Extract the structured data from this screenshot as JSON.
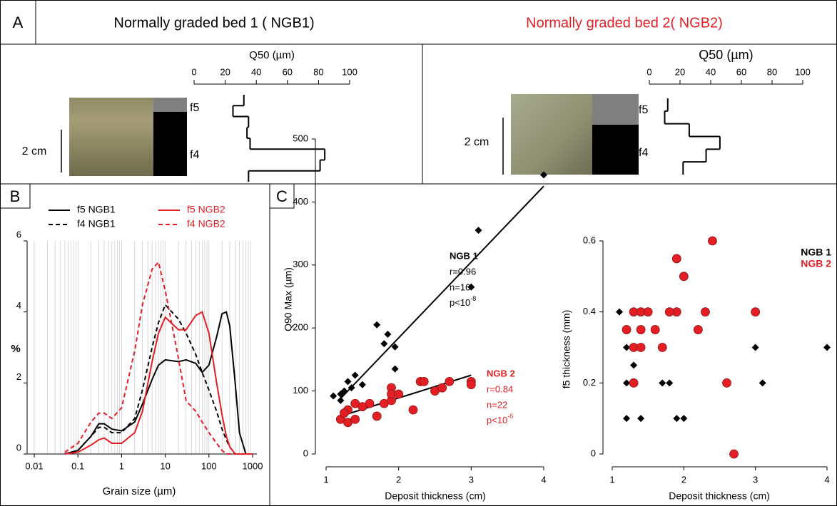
{
  "figure": {
    "panel_labels": [
      "A",
      "B",
      "C"
    ]
  },
  "chart_data": [
    {
      "type": "profile",
      "title": "Normally graded bed 1 ( NGB1)",
      "title_color": "#000000",
      "xlabel": "Q50 (µm)",
      "xlim": [
        0,
        100
      ],
      "xticks": [
        0,
        20,
        40,
        60,
        80,
        100
      ],
      "color": "#000000",
      "values": [
        32,
        25,
        35,
        34,
        36,
        84,
        81,
        35
      ],
      "layers": [
        "f5",
        "f4"
      ],
      "scale_label": "2 cm"
    },
    {
      "type": "profile",
      "title": "Normally graded bed 2( NGB2)",
      "title_color": "#e31e24",
      "xlabel": "Q50 (µm)",
      "xlim": [
        0,
        100
      ],
      "xticks": [
        0,
        20,
        40,
        60,
        80,
        100
      ],
      "color": "#000000",
      "values": [
        12,
        10,
        26,
        46,
        37,
        22
      ],
      "layers": [
        "f5",
        "f4"
      ],
      "scale_label": "2 cm"
    },
    {
      "type": "line",
      "xlabel": "Grain size (µm)",
      "ylabel": "%",
      "xscale": "log",
      "minor_grid": true,
      "xlim": [
        0.01,
        1000
      ],
      "xticks": [
        0.01,
        0.1,
        1,
        10,
        100,
        1000
      ],
      "ylim": [
        0,
        6
      ],
      "yticks": [
        0,
        2,
        4,
        6
      ],
      "x": [
        0.05,
        0.1,
        0.2,
        0.3,
        0.4,
        0.6,
        1,
        2,
        3,
        5,
        7,
        10,
        20,
        30,
        50,
        70,
        100,
        150,
        200,
        250,
        300,
        400,
        500,
        700,
        1000
      ],
      "series": [
        {
          "name": "f5 NGB1",
          "color": "#000000",
          "dashed": false,
          "values": [
            0,
            0.1,
            0.5,
            0.85,
            0.85,
            0.7,
            0.65,
            0.9,
            1.4,
            2.1,
            2.5,
            2.65,
            2.6,
            2.65,
            2.55,
            2.3,
            2.5,
            3.3,
            3.95,
            4.0,
            3.6,
            2.0,
            0.6,
            0,
            0
          ]
        },
        {
          "name": "f4 NGB1",
          "color": "#000000",
          "dashed": true,
          "values": [
            0,
            0.1,
            0.5,
            0.75,
            0.75,
            0.6,
            0.6,
            1.0,
            1.8,
            3.0,
            3.7,
            4.2,
            3.8,
            3.4,
            2.8,
            2.3,
            1.8,
            1.2,
            0.7,
            0.4,
            0.2,
            0,
            0,
            0,
            0
          ]
        },
        {
          "name": "f5 NGB2",
          "color": "#e31e24",
          "dashed": false,
          "values": [
            0,
            0.05,
            0.25,
            0.4,
            0.45,
            0.3,
            0.3,
            0.6,
            1.2,
            2.6,
            3.4,
            3.85,
            3.5,
            3.5,
            3.9,
            4.0,
            3.4,
            2.0,
            1.1,
            0.5,
            0.2,
            0,
            0,
            0,
            0
          ]
        },
        {
          "name": "f4 NGB2",
          "color": "#e31e24",
          "dashed": true,
          "values": [
            0.05,
            0.3,
            0.9,
            1.15,
            1.15,
            1.0,
            1.3,
            2.9,
            4.2,
            5.2,
            5.4,
            4.6,
            2.7,
            1.5,
            1.2,
            0.9,
            0.6,
            0.3,
            0.1,
            0,
            0,
            0,
            0,
            0,
            0
          ]
        }
      ]
    },
    {
      "type": "scatter",
      "xlabel": "Deposit thickness (cm)",
      "ylabel": "Q90 Max (µm)",
      "xlim": [
        1,
        4
      ],
      "xticks": [
        1,
        2,
        3,
        4
      ],
      "ylim": [
        0,
        500
      ],
      "yticks": [
        0,
        100,
        200,
        300,
        400,
        500
      ],
      "series": [
        {
          "name": "NGB 1",
          "color": "#000000",
          "marker": "diamond",
          "x": [
            1.1,
            1.2,
            1.25,
            1.3,
            1.35,
            1.4,
            1.5,
            1.7,
            1.8,
            1.85,
            1.95,
            1.95,
            3.0,
            3.1,
            4.0,
            1.2
          ],
          "values": [
            92,
            85,
            100,
            115,
            105,
            125,
            110,
            205,
            175,
            190,
            170,
            135,
            265,
            355,
            443,
            95
          ],
          "fit": {
            "x": [
              1.2,
              4
            ],
            "y": [
              88,
              425
            ]
          },
          "stats": [
            "r=0.96",
            "n=16"
          ],
          "p": [
            "p<10",
            "-8"
          ]
        },
        {
          "name": "NGB 2",
          "color": "#e31e24",
          "marker": "circle",
          "x": [
            1.2,
            1.3,
            1.3,
            1.4,
            1.4,
            1.5,
            1.6,
            1.7,
            1.8,
            1.9,
            1.9,
            1.9,
            2.0,
            2.2,
            2.3,
            2.35,
            2.5,
            2.6,
            2.7,
            3.0,
            3.0,
            1.25
          ],
          "values": [
            55,
            50,
            70,
            80,
            55,
            75,
            80,
            60,
            80,
            105,
            85,
            95,
            95,
            70,
            115,
            115,
            100,
            105,
            115,
            115,
            110,
            65
          ],
          "fit": {
            "x": [
              1.2,
              3
            ],
            "y": [
              60,
              125
            ]
          },
          "stats": [
            "r=0.84",
            "n=22"
          ],
          "p": [
            "p<10",
            "-6"
          ]
        }
      ]
    },
    {
      "type": "scatter",
      "xlabel": "Deposit thickness (cm)",
      "ylabel": "f5 thickness (mm)",
      "legend": "top-right",
      "xlim": [
        1,
        4
      ],
      "xticks": [
        1,
        2,
        3,
        4
      ],
      "ylim": [
        0,
        0.6
      ],
      "yticks": [
        0,
        0.2,
        0.4,
        0.6
      ],
      "series": [
        {
          "name": "NGB 1",
          "color": "#000000",
          "marker": "diamond",
          "x": [
            1.1,
            1.2,
            1.2,
            1.2,
            1.3,
            1.3,
            1.3,
            1.4,
            1.4,
            1.5,
            1.7,
            1.8,
            1.9,
            2.0,
            3.0,
            3.1,
            4.0
          ],
          "values": [
            0.4,
            0.3,
            0.2,
            0.1,
            0.3,
            0.25,
            0.2,
            0.1,
            0.3,
            0.4,
            0.2,
            0.2,
            0.1,
            0.1,
            0.3,
            0.2,
            0.3
          ]
        },
        {
          "name": "NGB 2",
          "color": "#e31e24",
          "marker": "circle",
          "x": [
            1.2,
            1.3,
            1.3,
            1.3,
            1.4,
            1.4,
            1.4,
            1.5,
            1.6,
            1.7,
            1.9,
            1.9,
            2.0,
            2.2,
            2.3,
            2.4,
            2.6,
            3.0,
            1.8,
            2.7
          ],
          "values": [
            0.35,
            0.4,
            0.3,
            0.2,
            0.4,
            0.35,
            0.3,
            0.4,
            0.35,
            0.3,
            0.55,
            0.4,
            0.5,
            0.35,
            0.4,
            0.6,
            0.2,
            0.4,
            0.4,
            0
          ]
        }
      ]
    }
  ]
}
